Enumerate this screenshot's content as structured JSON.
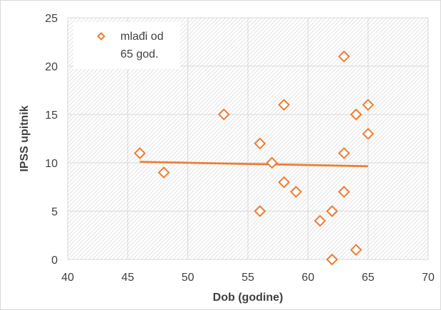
{
  "chart_data": {
    "type": "scatter",
    "xlabel": "Dob (godine)",
    "ylabel": "IPSS upitnik",
    "xlim": [
      40,
      70
    ],
    "ylim": [
      0,
      25
    ],
    "xticks": [
      "40",
      "45",
      "50",
      "55",
      "60",
      "65",
      "70"
    ],
    "yticks": [
      "0",
      "5",
      "10",
      "15",
      "20",
      "25"
    ],
    "grid": true,
    "legend_position": "top-left",
    "series": [
      {
        "name": "mlađi od 65 god.",
        "legend_lines": [
          "mlađi od",
          "65 god."
        ],
        "color": "#ED7D31",
        "marker": "diamond-open",
        "points": [
          {
            "x": 46,
            "y": 11
          },
          {
            "x": 48,
            "y": 9
          },
          {
            "x": 53,
            "y": 15
          },
          {
            "x": 56,
            "y": 12
          },
          {
            "x": 56,
            "y": 5
          },
          {
            "x": 57,
            "y": 10
          },
          {
            "x": 58,
            "y": 16
          },
          {
            "x": 58,
            "y": 8
          },
          {
            "x": 59,
            "y": 7
          },
          {
            "x": 61,
            "y": 4
          },
          {
            "x": 62,
            "y": 5
          },
          {
            "x": 62,
            "y": 0
          },
          {
            "x": 63,
            "y": 21
          },
          {
            "x": 63,
            "y": 11
          },
          {
            "x": 63,
            "y": 7
          },
          {
            "x": 64,
            "y": 15
          },
          {
            "x": 64,
            "y": 1
          },
          {
            "x": 65,
            "y": 16
          },
          {
            "x": 65,
            "y": 13
          }
        ]
      }
    ],
    "trendline": {
      "type": "linear",
      "x": [
        46,
        65
      ],
      "y": [
        10.1,
        9.65
      ],
      "color": "#ED7D31"
    }
  }
}
